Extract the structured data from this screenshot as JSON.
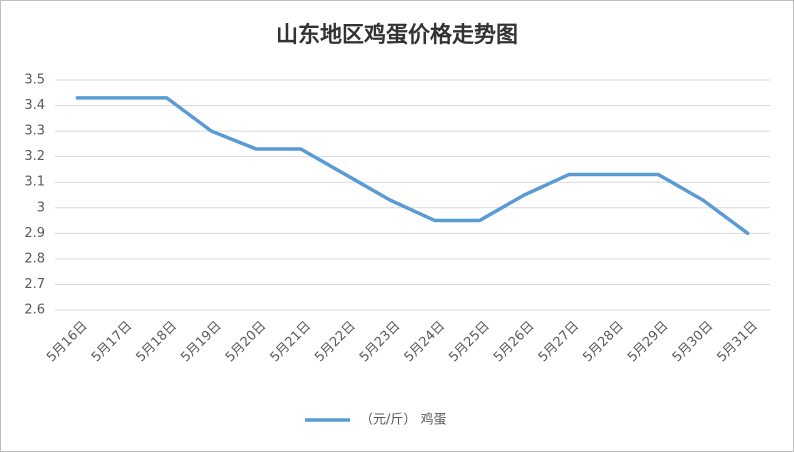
{
  "chart_data": {
    "type": "line",
    "title": "山东地区鸡蛋价格走势图",
    "categories": [
      "5月16日",
      "5月17日",
      "5月18日",
      "5月19日",
      "5月20日",
      "5月21日",
      "5月22日",
      "5月23日",
      "5月24日",
      "5月25日",
      "5月26日",
      "5月27日",
      "5月28日",
      "5月29日",
      "5月30日",
      "5月31日"
    ],
    "series": [
      {
        "name": "（元/斤） 鸡蛋",
        "color": "#5b9bd5",
        "values": [
          3.43,
          3.43,
          3.43,
          3.3,
          3.23,
          3.23,
          3.13,
          3.03,
          2.95,
          2.95,
          3.05,
          3.13,
          3.13,
          3.13,
          3.03,
          2.9
        ]
      }
    ],
    "ylim": [
      2.6,
      3.5
    ],
    "yticks": [
      2.6,
      2.7,
      2.8,
      2.9,
      3,
      3.1,
      3.2,
      3.3,
      3.4,
      3.5
    ],
    "grid": true,
    "legend": "bottom"
  }
}
